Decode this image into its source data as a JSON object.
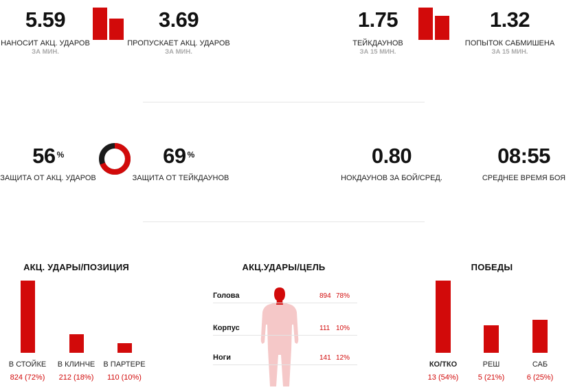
{
  "row1": {
    "strikes_landed": {
      "value": "5.59",
      "label": "НАНОСИТ АКЦ. УДАРОВ",
      "sub": "ЗА МИН."
    },
    "strikes_absorbed": {
      "value": "3.69",
      "label": "ПРОПУСКАЕТ АКЦ. УДАРОВ",
      "sub": "ЗА МИН."
    },
    "strikes_compare": [
      5.59,
      3.69
    ],
    "takedowns": {
      "value": "1.75",
      "label": "ТЕЙКДАУНОВ",
      "sub": "ЗА 15 МИН."
    },
    "submissions": {
      "value": "1.32",
      "label": "ПОПЫТОК САБМИШЕНА",
      "sub": "ЗА 15 МИН."
    },
    "grappling_compare": [
      1.75,
      1.32
    ]
  },
  "row2": {
    "strike_defense": {
      "value": "56",
      "unit": "%",
      "label": "ЗАЩИТА ОТ АКЦ. УДАРОВ"
    },
    "takedown_defense": {
      "value": "69",
      "unit": "%",
      "label": "ЗАЩИТА ОТ ТЕЙКДАУНОВ"
    },
    "ring": {
      "strike_defense_fraction": 0.56,
      "takedown_defense_fraction": 0.69
    },
    "knockdowns": {
      "value": "0.80",
      "label": "НОКДАУНОВ ЗА БОЙ/СРЕД."
    },
    "avg_fight_time": {
      "value": "08:55",
      "label": "СРЕДНЕЕ ВРЕМЯ БОЯ"
    }
  },
  "position": {
    "title": "АКЦ. УДАРЫ/ПОЗИЦИЯ",
    "items": [
      {
        "label": "В СТОЙКЕ",
        "count": 824,
        "pct": 72,
        "text": "824 (72%)"
      },
      {
        "label": "В КЛИНЧЕ",
        "count": 212,
        "pct": 18,
        "text": "212 (18%)"
      },
      {
        "label": "В ПАРТЕРЕ",
        "count": 110,
        "pct": 10,
        "text": "110 (10%)"
      }
    ]
  },
  "target": {
    "title": "АКЦ.УДАРЫ/ЦЕЛЬ",
    "items": [
      {
        "label": "Голова",
        "count": "894",
        "pct": "78%"
      },
      {
        "label": "Корпус",
        "count": "111",
        "pct": "10%"
      },
      {
        "label": "Ноги",
        "count": "141",
        "pct": "12%"
      }
    ]
  },
  "wins": {
    "title": "ПОБЕДЫ",
    "items": [
      {
        "label": "КО/ТКО",
        "count": 13,
        "pct": 54,
        "text": "13 (54%)",
        "bold": true
      },
      {
        "label": "РЕШ",
        "count": 5,
        "pct": 21,
        "text": "5 (21%)",
        "bold": false
      },
      {
        "label": "САБ",
        "count": 6,
        "pct": 25,
        "text": "6 (25%)",
        "bold": false
      }
    ]
  },
  "colors": {
    "accent": "#d20a0a",
    "ring_dark": "#1b1b1b",
    "body_silhouette": "#f5c8c8"
  }
}
